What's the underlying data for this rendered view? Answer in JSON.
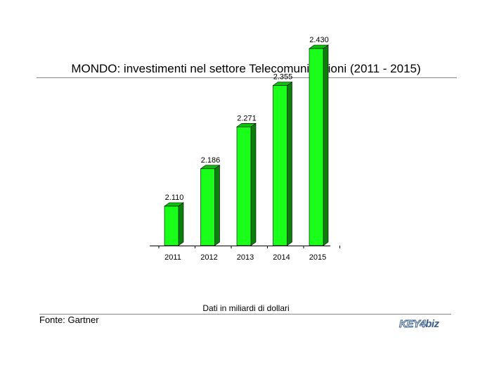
{
  "chart_data": {
    "type": "bar",
    "title": "MONDO: investimenti nel settore Telecomunicazioni (2011 - 2015)",
    "categories": [
      "2011",
      "2012",
      "2013",
      "2014",
      "2015"
    ],
    "values": [
      2110,
      2186,
      2271,
      2355,
      2430
    ],
    "value_labels": [
      "2.110",
      "2.186",
      "2.271",
      "2.355",
      "2.430"
    ],
    "xlabel": "",
    "ylabel": "",
    "ylim": [
      2000,
      2450
    ],
    "grid": false,
    "legend": "none",
    "colors": {
      "bar_front": "#19ff19",
      "bar_side": "#0a7f0a",
      "bar_top": "#0fbf0f",
      "bar_edge": "#000000"
    }
  },
  "footer": {
    "note": "Dati in miliardi di dollari",
    "source": "Fonte: Gartner",
    "logo_text": "KEY4biz"
  }
}
